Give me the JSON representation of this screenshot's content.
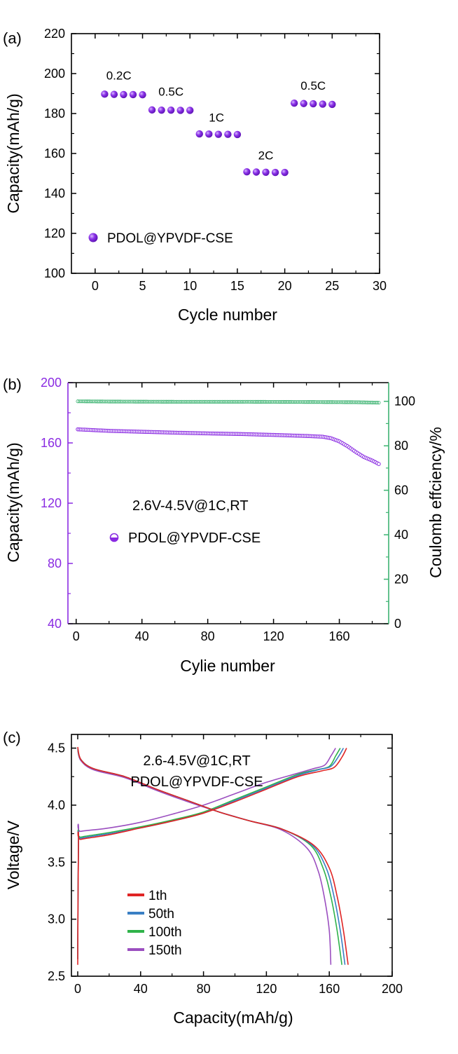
{
  "chart_data": [
    {
      "panel_label": "(a)",
      "type": "scatter",
      "xlabel": "Cycle number",
      "ylabel": "Capacity(mAh/g)",
      "xlim": [
        -2.5,
        30
      ],
      "ylim": [
        100,
        220
      ],
      "xticks": [
        0,
        5,
        10,
        15,
        20,
        25,
        30
      ],
      "yticks": [
        100,
        120,
        140,
        160,
        180,
        200,
        220
      ],
      "legend": "PDOL@YPVDF-CSE",
      "colors": {
        "marker": "#7a1fd6",
        "marker_light": "#b98af0"
      },
      "series": [
        {
          "name": "PDOL@YPVDF-CSE",
          "x": [
            1,
            2,
            3,
            4,
            5,
            6,
            7,
            8,
            9,
            10,
            11,
            12,
            13,
            14,
            15,
            16,
            17,
            18,
            19,
            20,
            21,
            22,
            23,
            24,
            25
          ],
          "y": [
            189.7,
            189.6,
            189.5,
            189.5,
            189.4,
            181.8,
            181.7,
            181.7,
            181.6,
            181.6,
            169.8,
            169.7,
            169.6,
            169.6,
            169.5,
            150.8,
            150.7,
            150.6,
            150.5,
            150.5,
            185.2,
            185.0,
            184.9,
            184.7,
            184.6
          ]
        }
      ],
      "annotations": [
        {
          "text": "0.2C",
          "x": 2.5,
          "y": 197
        },
        {
          "text": "0.5C",
          "x": 8.0,
          "y": 189
        },
        {
          "text": "1C",
          "x": 12.8,
          "y": 176
        },
        {
          "text": "2C",
          "x": 18.0,
          "y": 157
        },
        {
          "text": "0.5C",
          "x": 23.0,
          "y": 192
        }
      ]
    },
    {
      "panel_label": "(b)",
      "type": "scatter",
      "xlabel": "Cylie number",
      "ylabel": "Capacity(mAh/g)",
      "ylabel_right": "Coulomb effciency/%",
      "xlim": [
        -5,
        190
      ],
      "ylim": [
        40,
        200
      ],
      "ylim_right": [
        0,
        108.4
      ],
      "xticks": [
        0,
        40,
        80,
        120,
        160
      ],
      "yticks": [
        40,
        80,
        120,
        160,
        200
      ],
      "yticks_right": [
        0,
        20,
        40,
        60,
        80,
        100
      ],
      "annotation": "2.6V-4.5V@1C,RT",
      "legend": "PDOL@YPVDF-CSE",
      "colors": {
        "capacity": "#8a2be2",
        "efficiency": "#3cb371"
      },
      "capacity_curve": {
        "x": [
          1,
          20,
          40,
          60,
          80,
          100,
          120,
          140,
          150,
          155,
          160,
          165,
          170,
          175,
          180,
          184
        ],
        "y": [
          169.0,
          168.0,
          167.4,
          166.8,
          166.3,
          165.9,
          165.3,
          164.6,
          164.1,
          163.1,
          161.0,
          157.8,
          154.0,
          150.6,
          148.3,
          146.0
        ]
      },
      "efficiency_curve": {
        "x": [
          1,
          20,
          60,
          100,
          140,
          170,
          184
        ],
        "y": [
          100.0,
          99.9,
          99.8,
          99.8,
          99.7,
          99.6,
          99.4
        ]
      },
      "series_names": [
        "Capacity",
        "Coulomb efficiency"
      ]
    },
    {
      "panel_label": "(c)",
      "type": "line",
      "xlabel": "Capacity(mAh/g)",
      "ylabel": "Voltage/V",
      "xlim": [
        -4,
        200
      ],
      "ylim": [
        2.5,
        4.62
      ],
      "xticks": [
        0,
        40,
        80,
        120,
        160,
        200
      ],
      "yticks": [
        2.5,
        3.0,
        3.5,
        4.0,
        4.5
      ],
      "ytick_labels": [
        "2.5",
        "3.0",
        "3.5",
        "4.0",
        "4.5"
      ],
      "annotation_lines": [
        "2.6-4.5V@1C,RT",
        "PDOL@YPVDF-CSE"
      ],
      "series": [
        {
          "name": "1th",
          "color": "#e02424",
          "dx": 0,
          "charge_x": [
            0,
            0.5,
            2,
            20,
            40,
            60,
            80,
            100,
            120,
            140,
            155,
            163,
            168,
            171
          ],
          "charge_y": [
            2.6,
            3.68,
            3.7,
            3.74,
            3.8,
            3.86,
            3.93,
            4.03,
            4.14,
            4.25,
            4.3,
            4.33,
            4.42,
            4.5
          ],
          "discharge_x": [
            0,
            2,
            10,
            30,
            50,
            70,
            90,
            110,
            130,
            150,
            160,
            165,
            169,
            172
          ],
          "discharge_y": [
            4.51,
            4.4,
            4.32,
            4.25,
            4.14,
            4.04,
            3.94,
            3.86,
            3.79,
            3.65,
            3.45,
            3.2,
            2.9,
            2.6
          ]
        },
        {
          "name": "50th",
          "color": "#3a7fc4",
          "dx": -1.5,
          "charge_x": [
            0,
            0.5,
            2,
            20,
            40,
            60,
            80,
            100,
            120,
            140,
            153,
            161,
            166,
            169
          ],
          "charge_y": [
            2.65,
            3.69,
            3.71,
            3.75,
            3.8,
            3.86,
            3.93,
            4.04,
            4.15,
            4.26,
            4.31,
            4.34,
            4.43,
            4.5
          ],
          "discharge_x": [
            0,
            2,
            10,
            30,
            50,
            70,
            90,
            110,
            130,
            149,
            158,
            163,
            167,
            170
          ],
          "discharge_y": [
            4.5,
            4.4,
            4.32,
            4.25,
            4.14,
            4.04,
            3.94,
            3.86,
            3.79,
            3.65,
            3.45,
            3.2,
            2.9,
            2.6
          ]
        },
        {
          "name": "100th",
          "color": "#2fb34a",
          "dx": -3,
          "charge_x": [
            0,
            0.5,
            2,
            20,
            40,
            60,
            80,
            100,
            120,
            140,
            152,
            160,
            164,
            167
          ],
          "charge_y": [
            2.65,
            3.7,
            3.72,
            3.76,
            3.81,
            3.87,
            3.94,
            4.05,
            4.16,
            4.27,
            4.31,
            4.34,
            4.43,
            4.5
          ],
          "discharge_x": [
            0,
            2,
            10,
            30,
            50,
            70,
            90,
            110,
            130,
            148,
            156,
            161,
            165,
            168
          ],
          "discharge_y": [
            4.49,
            4.4,
            4.32,
            4.25,
            4.14,
            4.04,
            3.94,
            3.86,
            3.79,
            3.65,
            3.45,
            3.2,
            2.9,
            2.6
          ]
        },
        {
          "name": "150th",
          "color": "#9b4fc0",
          "dx": -6,
          "charge_x": [
            0,
            0.5,
            2,
            20,
            40,
            60,
            80,
            100,
            120,
            140,
            150,
            157,
            161,
            164
          ],
          "charge_y": [
            2.7,
            3.75,
            3.77,
            3.8,
            3.85,
            3.92,
            4.0,
            4.1,
            4.2,
            4.28,
            4.32,
            4.35,
            4.43,
            4.5
          ],
          "discharge_x": [
            0,
            2,
            10,
            30,
            50,
            70,
            90,
            110,
            130,
            146,
            153,
            157,
            160,
            161
          ],
          "discharge_y": [
            4.48,
            4.39,
            4.31,
            4.24,
            4.13,
            4.03,
            3.94,
            3.86,
            3.78,
            3.62,
            3.42,
            3.18,
            2.9,
            2.6
          ]
        }
      ]
    }
  ]
}
